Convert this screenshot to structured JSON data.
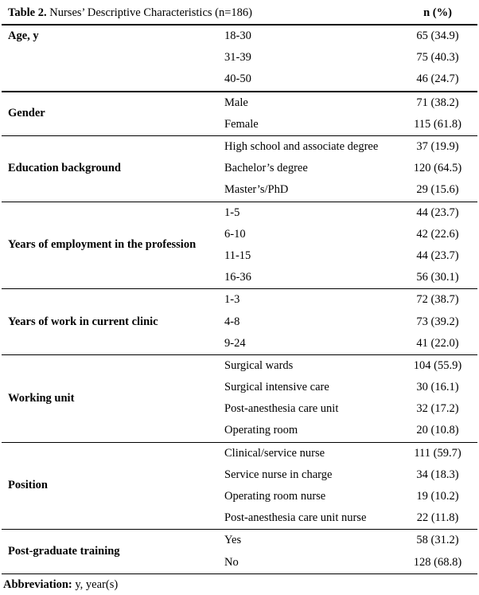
{
  "table": {
    "title_bold": "Table 2.",
    "title_rest": " Nurses’ Descriptive Characteristics (n=186)",
    "value_header": "n (%)",
    "sections": [
      {
        "label": "Age, y",
        "rows": [
          {
            "item": "18-30",
            "value": "65 (34.9)"
          },
          {
            "item": "31-39",
            "value": "75 (40.3)"
          },
          {
            "item": "40-50",
            "value": "46 (24.7)"
          }
        ]
      },
      {
        "label": "Gender",
        "rows": [
          {
            "item": "Male",
            "value": "71 (38.2)"
          },
          {
            "item": "Female",
            "value": "115 (61.8)"
          }
        ]
      },
      {
        "label": "Education background",
        "rows": [
          {
            "item": "High school and associate degree",
            "value": "37 (19.9)"
          },
          {
            "item": "Bachelor’s degree",
            "value": "120 (64.5)"
          },
          {
            "item": "Master’s/PhD",
            "value": "29 (15.6)"
          }
        ]
      },
      {
        "label": "Years of employment in the profession",
        "rows": [
          {
            "item": "1-5",
            "value": "44 (23.7)"
          },
          {
            "item": "6-10",
            "value": "42 (22.6)"
          },
          {
            "item": "11-15",
            "value": "44 (23.7)"
          },
          {
            "item": "16-36",
            "value": "56 (30.1)"
          }
        ]
      },
      {
        "label": "Years of work in current clinic",
        "rows": [
          {
            "item": "1-3",
            "value": "72 (38.7)"
          },
          {
            "item": "4-8",
            "value": "73 (39.2)"
          },
          {
            "item": "9-24",
            "value": "41 (22.0)"
          }
        ]
      },
      {
        "label": "Working unit",
        "rows": [
          {
            "item": "Surgical wards",
            "value": "104 (55.9)"
          },
          {
            "item": "Surgical intensive care",
            "value": "30 (16.1)"
          },
          {
            "item": "Post-anesthesia care unit",
            "value": "32 (17.2)"
          },
          {
            "item": "Operating room",
            "value": "20 (10.8)"
          }
        ]
      },
      {
        "label": "Position",
        "rows": [
          {
            "item": "Clinical/service nurse",
            "value": "111 (59.7)"
          },
          {
            "item": "Service nurse in charge",
            "value": "34 (18.3)"
          },
          {
            "item": "Operating room nurse",
            "value": "19 (10.2)"
          },
          {
            "item": "Post-anesthesia care unit nurse",
            "value": "22 (11.8)"
          }
        ]
      },
      {
        "label": "Post-graduate training",
        "rows": [
          {
            "item": "Yes",
            "value": "58 (31.2)"
          },
          {
            "item": "No",
            "value": "128 (68.8)"
          }
        ]
      }
    ],
    "footer_bold": "Abbreviation:",
    "footer_rest": " y, year(s)"
  }
}
